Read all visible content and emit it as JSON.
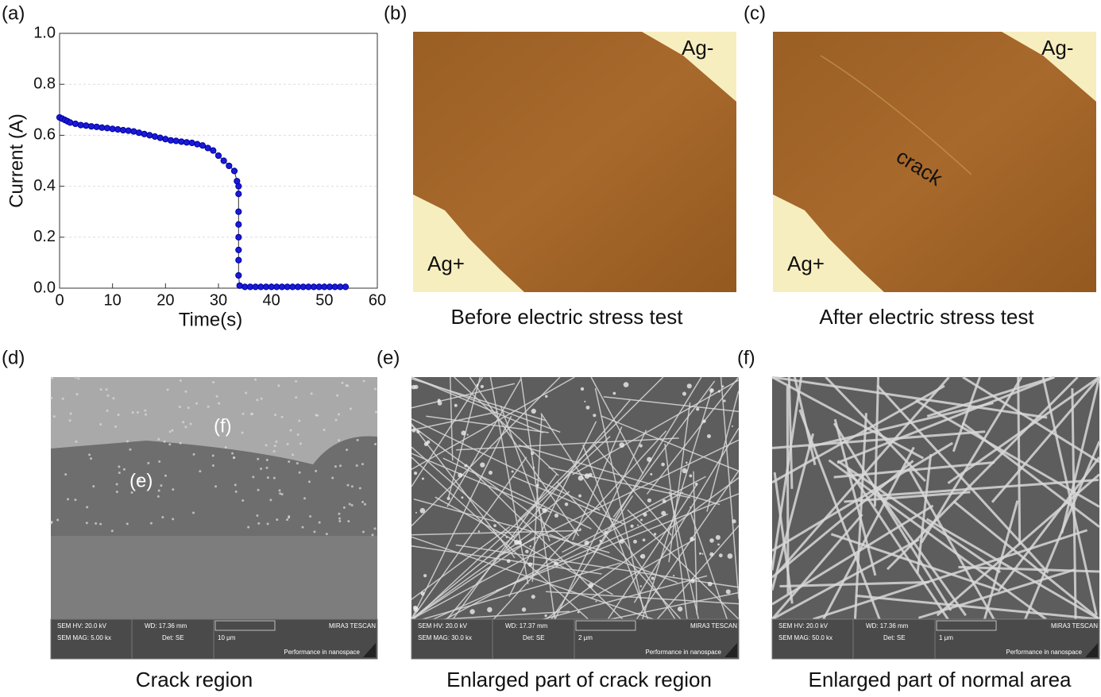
{
  "chart_data": {
    "type": "line",
    "label": "(a)",
    "x_label": "Time(s)",
    "y_label": "Current (A)",
    "color": "#1a1ad6",
    "x": [
      0,
      0.5,
      1,
      1.5,
      2,
      3,
      4,
      5,
      6,
      7,
      8,
      9,
      10,
      11,
      12,
      13,
      14,
      15,
      16,
      17,
      18,
      19,
      20,
      21,
      22,
      23,
      24,
      25,
      26,
      27,
      28,
      29,
      30,
      31,
      32,
      33,
      33.5,
      33.8,
      33.8,
      33.8,
      33.8,
      33.8,
      33.8,
      33.8,
      33.8,
      34,
      35,
      36,
      37,
      38,
      39,
      40,
      41,
      42,
      43,
      44,
      45,
      46,
      47,
      48,
      49,
      50,
      51,
      52,
      53,
      54
    ],
    "values": [
      0.67,
      0.665,
      0.66,
      0.655,
      0.65,
      0.645,
      0.64,
      0.638,
      0.635,
      0.633,
      0.63,
      0.628,
      0.625,
      0.623,
      0.62,
      0.618,
      0.615,
      0.61,
      0.605,
      0.6,
      0.595,
      0.59,
      0.585,
      0.58,
      0.578,
      0.575,
      0.572,
      0.57,
      0.565,
      0.56,
      0.55,
      0.54,
      0.52,
      0.5,
      0.48,
      0.46,
      0.42,
      0.4,
      0.37,
      0.3,
      0.25,
      0.2,
      0.15,
      0.11,
      0.05,
      0.01,
      0.005,
      0.005,
      0.005,
      0.005,
      0.005,
      0.005,
      0.005,
      0.005,
      0.005,
      0.005,
      0.005,
      0.005,
      0.005,
      0.005,
      0.005,
      0.005,
      0.005,
      0.005,
      0.005,
      0.005
    ],
    "xlim": [
      0,
      60
    ],
    "ylim": [
      0,
      1
    ],
    "xticks": [
      0,
      10,
      20,
      30,
      40,
      50,
      60
    ],
    "yticks": [
      {
        "value": 0,
        "label": "0.0"
      },
      0.2,
      0.4,
      0.6,
      0.8,
      {
        "value": 1,
        "label": "1.0"
      }
    ],
    "grid": true
  },
  "optical_panels": [
    {
      "label": "(b)",
      "caption": "Before electric stress test",
      "top_label": "Ag-",
      "bottom_label": "Ag+"
    },
    {
      "label": "(c)",
      "caption": "After electric stress test",
      "top_label": "Ag-",
      "bottom_label": "Ag+",
      "annotation": "crack"
    }
  ],
  "sem_panels": [
    {
      "label": "(d)",
      "caption": "Crack region",
      "regions": [
        "(f)",
        "(e)"
      ],
      "hv": "SEM HV: 20.0 kV",
      "wd": "WD: 17.36 mm",
      "brand": "MIRA3 TESCAN",
      "mag": "SEM MAG: 5.00 kx",
      "det": "Det: SE",
      "scale": "10 μm",
      "slogan": "Performance in nanospace"
    },
    {
      "label": "(e)",
      "caption": "Enlarged part of crack region",
      "hv": "SEM HV: 20.0 kV",
      "wd": "WD: 17.37 mm",
      "brand": "MIRA3 TESCAN",
      "mag": "SEM MAG: 30.0 kx",
      "det": "Det: SE",
      "scale": "2 μm",
      "slogan": "Performance in nanospace"
    },
    {
      "label": "(f)",
      "caption": "Enlarged part of normal area",
      "hv": "SEM HV: 20.0 kV",
      "wd": "WD: 17.36 mm",
      "brand": "MIRA3 TESCAN",
      "mag": "SEM MAG: 50.0 kx",
      "det": "Det: SE",
      "scale": "1 μm",
      "slogan": "Performance in nanospace"
    }
  ]
}
